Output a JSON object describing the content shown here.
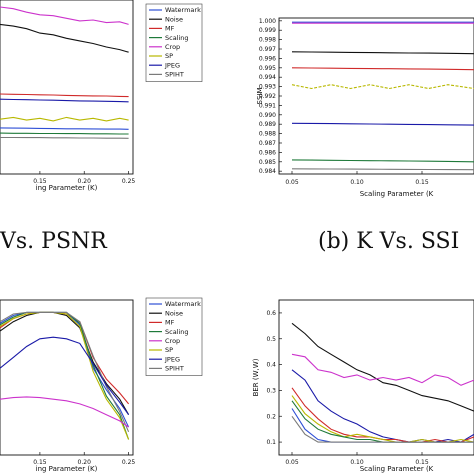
{
  "captions": {
    "a": "Vs. PSNR",
    "b": "(b) K Vs. SSI"
  },
  "series_colors": {
    "Watermark": "#2e4fd6",
    "Noise": "#111111",
    "MF": "#d02a2a",
    "Scaling": "#1f7a3a",
    "Crop": "#cc33cc",
    "SP": "#b8b800",
    "JPEG": "#1a1aa8",
    "SPIHT": "#7a7a7a"
  },
  "chart_data": [
    {
      "id": "psnr",
      "type": "line",
      "title": "",
      "xlabel": "ing Parameter (K)",
      "ylabel": "",
      "xlim": [
        0.105,
        0.255
      ],
      "ylim": [
        0,
        10
      ],
      "x_ticks": [
        "0.15",
        "0.20",
        "0.25"
      ],
      "legend": [
        "Watermark",
        "Noise",
        "MF",
        "Scaling",
        "Crop",
        "SP",
        "JPEG",
        "SPIHT"
      ],
      "legend_position": "top-right",
      "x": [
        0.105,
        0.12,
        0.135,
        0.15,
        0.165,
        0.18,
        0.195,
        0.21,
        0.225,
        0.24,
        0.25
      ],
      "series": [
        {
          "name": "Crop",
          "values": [
            9.6,
            9.5,
            9.3,
            9.15,
            9.1,
            8.95,
            8.8,
            8.85,
            8.7,
            8.75,
            8.6
          ]
        },
        {
          "name": "Noise",
          "values": [
            8.6,
            8.5,
            8.35,
            8.1,
            8.0,
            7.8,
            7.65,
            7.5,
            7.3,
            7.15,
            7.0
          ]
        },
        {
          "name": "MF",
          "values": [
            4.6,
            4.58,
            4.57,
            4.55,
            4.54,
            4.52,
            4.5,
            4.49,
            4.48,
            4.46,
            4.45
          ]
        },
        {
          "name": "JPEG",
          "values": [
            4.3,
            4.28,
            4.27,
            4.25,
            4.24,
            4.22,
            4.2,
            4.19,
            4.18,
            4.16,
            4.15
          ]
        },
        {
          "name": "SP",
          "values": [
            3.15,
            3.25,
            3.1,
            3.2,
            3.05,
            3.25,
            3.1,
            3.2,
            3.05,
            3.2,
            3.1
          ]
        },
        {
          "name": "Watermark",
          "values": [
            2.65,
            2.64,
            2.63,
            2.62,
            2.61,
            2.6,
            2.6,
            2.59,
            2.58,
            2.58,
            2.57
          ]
        },
        {
          "name": "Scaling",
          "values": [
            2.35,
            2.34,
            2.34,
            2.33,
            2.33,
            2.32,
            2.32,
            2.31,
            2.31,
            2.3,
            2.3
          ]
        },
        {
          "name": "SPIHT",
          "values": [
            2.1,
            2.1,
            2.09,
            2.09,
            2.08,
            2.08,
            2.07,
            2.07,
            2.06,
            2.06,
            2.05
          ]
        }
      ]
    },
    {
      "id": "ssim",
      "type": "line",
      "title": "",
      "xlabel": "Scaling Parameter (K",
      "ylabel": "SSIM",
      "xlim": [
        0.04,
        0.19
      ],
      "ylim": [
        0.9837,
        1.0003
      ],
      "y_ticks": [
        "0.984",
        "0.985",
        "0.986",
        "0.987",
        "0.988",
        "0.989",
        "0.990",
        "0.991",
        "0.992",
        "0.993",
        "0.994",
        "0.995",
        "0.996",
        "0.997",
        "0.998",
        "0.999",
        "1.000"
      ],
      "x_ticks": [
        "0.05",
        "0.10",
        "0.15"
      ],
      "x": [
        0.05,
        0.065,
        0.08,
        0.095,
        0.11,
        0.125,
        0.14,
        0.155,
        0.17,
        0.19
      ],
      "series": [
        {
          "name": "Watermark",
          "values": [
            0.99985,
            0.99985,
            0.99985,
            0.99985,
            0.99985,
            0.99985,
            0.99985,
            0.99985,
            0.99985,
            0.99985
          ]
        },
        {
          "name": "Crop",
          "values": [
            0.99975,
            0.99975,
            0.99975,
            0.99975,
            0.99975,
            0.99975,
            0.99975,
            0.99975,
            0.99975,
            0.99975
          ]
        },
        {
          "name": "Noise",
          "values": [
            0.9967,
            0.99668,
            0.99666,
            0.99664,
            0.99662,
            0.9966,
            0.99658,
            0.99656,
            0.99654,
            0.9965
          ]
        },
        {
          "name": "MF",
          "values": [
            0.995,
            0.99498,
            0.99496,
            0.99494,
            0.99492,
            0.9949,
            0.99488,
            0.99486,
            0.99484,
            0.9948
          ]
        },
        {
          "name": "SP",
          "values": [
            0.9932,
            0.9928,
            0.9932,
            0.9928,
            0.9932,
            0.9928,
            0.9932,
            0.9928,
            0.9932,
            0.9928
          ]
        },
        {
          "name": "JPEG",
          "values": [
            0.9891,
            0.98908,
            0.98906,
            0.98904,
            0.98902,
            0.989,
            0.98898,
            0.98896,
            0.98894,
            0.9889
          ]
        },
        {
          "name": "Scaling",
          "values": [
            0.9852,
            0.98518,
            0.98516,
            0.98514,
            0.98512,
            0.9851,
            0.98508,
            0.98506,
            0.98504,
            0.985
          ]
        },
        {
          "name": "SPIHT",
          "values": [
            0.98425,
            0.98424,
            0.98423,
            0.98422,
            0.98421,
            0.9842,
            0.98419,
            0.98418,
            0.98417,
            0.98416
          ]
        }
      ]
    },
    {
      "id": "ber_c",
      "type": "line",
      "title": "",
      "xlabel": "ing Parameter (K)",
      "ylabel": "",
      "xlim": [
        0.105,
        0.255
      ],
      "ylim": [
        0,
        10
      ],
      "x_ticks": [
        "0.15",
        "0.20",
        "0.25"
      ],
      "legend": [
        "Watermark",
        "Noise",
        "MF",
        "Scaling",
        "Crop",
        "SP",
        "JPEG",
        "SPIHT"
      ],
      "legend_position": "top-right",
      "x": [
        0.105,
        0.12,
        0.135,
        0.15,
        0.165,
        0.18,
        0.195,
        0.21,
        0.225,
        0.24,
        0.25
      ],
      "series": [
        {
          "name": "MF",
          "values": [
            8.2,
            8.8,
            9.1,
            9.2,
            9.2,
            9.1,
            8.6,
            6.3,
            4.9,
            4.0,
            3.3
          ]
        },
        {
          "name": "Noise",
          "values": [
            8.0,
            8.6,
            9.0,
            9.2,
            9.2,
            9.0,
            8.2,
            6.0,
            4.6,
            3.6,
            2.6
          ]
        },
        {
          "name": "Watermark",
          "values": [
            8.5,
            9.0,
            9.2,
            9.2,
            9.2,
            9.2,
            8.4,
            5.6,
            4.2,
            3.0,
            1.8
          ]
        },
        {
          "name": "Scaling",
          "values": [
            8.4,
            8.9,
            9.2,
            9.2,
            9.2,
            9.2,
            8.5,
            5.8,
            3.8,
            2.6,
            1.0
          ]
        },
        {
          "name": "SP",
          "values": [
            8.3,
            8.8,
            9.1,
            9.2,
            9.2,
            9.1,
            8.3,
            5.4,
            3.6,
            2.4,
            1.0
          ]
        },
        {
          "name": "SPIHT",
          "values": [
            8.6,
            9.1,
            9.2,
            9.2,
            9.2,
            9.2,
            8.6,
            6.4,
            4.4,
            2.8,
            1.5
          ]
        },
        {
          "name": "JPEG",
          "values": [
            5.6,
            6.3,
            7.0,
            7.5,
            7.6,
            7.5,
            7.2,
            5.9,
            4.5,
            3.4,
            2.6
          ]
        },
        {
          "name": "Crop",
          "values": [
            3.6,
            3.7,
            3.75,
            3.7,
            3.6,
            3.5,
            3.3,
            3.0,
            2.6,
            2.2,
            1.8
          ]
        }
      ]
    },
    {
      "id": "ber_d",
      "type": "line",
      "title": "",
      "xlabel": "Scaling Parameter (K",
      "ylabel": "BER (W,W)",
      "xlim": [
        0.04,
        0.19
      ],
      "ylim": [
        0.05,
        0.65
      ],
      "y_ticks": [
        "0.1",
        "0.2",
        "0.3",
        "0.4",
        "0.5",
        "0.6"
      ],
      "x_ticks": [
        "0.05",
        "0.10",
        "0.15"
      ],
      "x": [
        0.05,
        0.06,
        0.07,
        0.08,
        0.09,
        0.1,
        0.11,
        0.12,
        0.13,
        0.14,
        0.15,
        0.16,
        0.17,
        0.18,
        0.19
      ],
      "series": [
        {
          "name": "Noise",
          "values": [
            0.56,
            0.52,
            0.47,
            0.44,
            0.41,
            0.38,
            0.36,
            0.33,
            0.32,
            0.3,
            0.28,
            0.27,
            0.26,
            0.24,
            0.22
          ]
        },
        {
          "name": "Crop",
          "values": [
            0.44,
            0.43,
            0.38,
            0.37,
            0.35,
            0.36,
            0.34,
            0.35,
            0.34,
            0.35,
            0.33,
            0.36,
            0.35,
            0.32,
            0.34
          ]
        },
        {
          "name": "JPEG",
          "values": [
            0.38,
            0.34,
            0.26,
            0.22,
            0.19,
            0.17,
            0.14,
            0.12,
            0.11,
            0.1,
            0.11,
            0.1,
            0.11,
            0.1,
            0.13
          ]
        },
        {
          "name": "MF",
          "values": [
            0.31,
            0.24,
            0.19,
            0.15,
            0.13,
            0.12,
            0.12,
            0.11,
            0.11,
            0.1,
            0.1,
            0.11,
            0.1,
            0.1,
            0.12
          ]
        },
        {
          "name": "SP",
          "values": [
            0.28,
            0.21,
            0.17,
            0.14,
            0.12,
            0.13,
            0.12,
            0.11,
            0.1,
            0.1,
            0.11,
            0.1,
            0.1,
            0.11,
            0.1
          ]
        },
        {
          "name": "Scaling",
          "values": [
            0.26,
            0.19,
            0.15,
            0.13,
            0.12,
            0.11,
            0.11,
            0.1,
            0.1,
            0.1,
            0.1,
            0.1,
            0.1,
            0.1,
            0.1
          ]
        },
        {
          "name": "Watermark",
          "values": [
            0.23,
            0.15,
            0.11,
            0.1,
            0.1,
            0.1,
            0.1,
            0.1,
            0.1,
            0.1,
            0.1,
            0.1,
            0.1,
            0.1,
            0.1
          ]
        },
        {
          "name": "SPIHT",
          "values": [
            0.2,
            0.13,
            0.1,
            0.1,
            0.1,
            0.1,
            0.1,
            0.1,
            0.1,
            0.1,
            0.1,
            0.1,
            0.1,
            0.1,
            0.1
          ]
        }
      ]
    }
  ]
}
